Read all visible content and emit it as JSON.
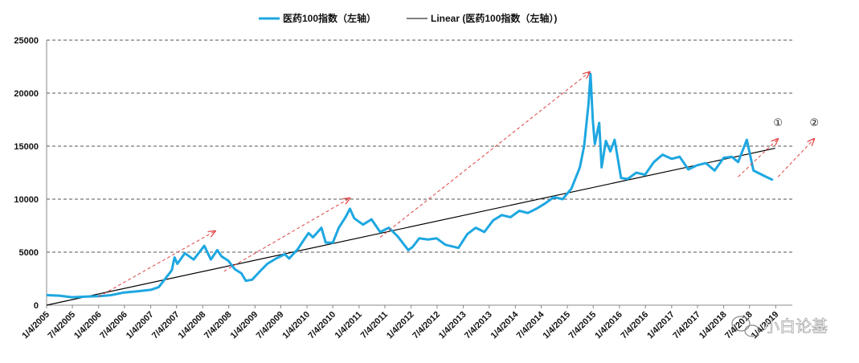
{
  "chart_data": {
    "type": "line",
    "legend": {
      "position": "top-center",
      "entries": [
        {
          "label": "医药100指数（左轴）",
          "color": "#1ea7e1"
        },
        {
          "label": "Linear (医药100指数（左轴）)",
          "color": "#000000"
        }
      ]
    },
    "y_axis": {
      "ylim": [
        0,
        25000
      ],
      "ticks": [
        "0",
        "5000",
        "10000",
        "15000",
        "20000",
        "25000"
      ],
      "gridlines": true
    },
    "x_axis": {
      "xlim": [
        "2005-01-04",
        "2019-04-30"
      ],
      "tick_labels": [
        "1/4/2005",
        "7/4/2005",
        "1/4/2006",
        "7/4/2006",
        "1/4/2007",
        "7/4/2007",
        "1/4/2008",
        "7/4/2008",
        "1/4/2009",
        "7/4/2009",
        "1/4/2010",
        "7/4/2010",
        "1/4/2011",
        "7/4/2011",
        "1/4/2012",
        "7/4/2012",
        "1/4/2013",
        "7/4/2013",
        "1/4/2014",
        "7/4/2014",
        "1/4/2015",
        "7/4/2015",
        "1/4/2016",
        "7/4/2016",
        "1/4/2017",
        "7/4/2017",
        "1/4/2018",
        "7/4/2018",
        "1/4/2019"
      ]
    },
    "series": [
      {
        "name": "医药100指数（左轴）",
        "color": "#1ea7e1",
        "points": [
          [
            "2005-01-04",
            950
          ],
          [
            "2005-04-01",
            900
          ],
          [
            "2005-07-01",
            750
          ],
          [
            "2005-10-01",
            800
          ],
          [
            "2006-01-04",
            850
          ],
          [
            "2006-04-01",
            950
          ],
          [
            "2006-07-01",
            1200
          ],
          [
            "2006-10-01",
            1300
          ],
          [
            "2007-01-04",
            1450
          ],
          [
            "2007-03-01",
            1700
          ],
          [
            "2007-05-15",
            3000
          ],
          [
            "2007-06-01",
            3300
          ],
          [
            "2007-06-20",
            4500
          ],
          [
            "2007-07-10",
            3900
          ],
          [
            "2007-09-01",
            4900
          ],
          [
            "2007-11-01",
            4300
          ],
          [
            "2008-01-15",
            5600
          ],
          [
            "2008-03-01",
            4300
          ],
          [
            "2008-04-15",
            5200
          ],
          [
            "2008-05-15",
            4600
          ],
          [
            "2008-07-01",
            4200
          ],
          [
            "2008-08-15",
            3400
          ],
          [
            "2008-10-01",
            3000
          ],
          [
            "2008-11-01",
            2300
          ],
          [
            "2008-12-15",
            2400
          ],
          [
            "2009-02-01",
            3100
          ],
          [
            "2009-04-01",
            3900
          ],
          [
            "2009-06-01",
            4400
          ],
          [
            "2009-08-01",
            4800
          ],
          [
            "2009-09-01",
            4400
          ],
          [
            "2009-11-01",
            5300
          ],
          [
            "2009-12-15",
            6200
          ],
          [
            "2010-01-15",
            6800
          ],
          [
            "2010-02-15",
            6400
          ],
          [
            "2010-04-15",
            7300
          ],
          [
            "2010-05-15",
            5900
          ],
          [
            "2010-07-04",
            5900
          ],
          [
            "2010-08-15",
            7300
          ],
          [
            "2010-10-01",
            8300
          ],
          [
            "2010-11-01",
            9100
          ],
          [
            "2010-12-01",
            8200
          ],
          [
            "2011-02-01",
            7600
          ],
          [
            "2011-04-01",
            8100
          ],
          [
            "2011-06-01",
            6900
          ],
          [
            "2011-08-01",
            7300
          ],
          [
            "2011-10-01",
            6500
          ],
          [
            "2011-12-15",
            5200
          ],
          [
            "2012-01-15",
            5500
          ],
          [
            "2012-03-01",
            6300
          ],
          [
            "2012-05-01",
            6200
          ],
          [
            "2012-07-01",
            6300
          ],
          [
            "2012-09-01",
            5700
          ],
          [
            "2012-12-01",
            5400
          ],
          [
            "2013-02-01",
            6700
          ],
          [
            "2013-04-01",
            7300
          ],
          [
            "2013-06-01",
            6900
          ],
          [
            "2013-08-01",
            8000
          ],
          [
            "2013-10-01",
            8500
          ],
          [
            "2013-12-01",
            8300
          ],
          [
            "2014-02-01",
            8900
          ],
          [
            "2014-04-01",
            8700
          ],
          [
            "2014-06-01",
            9100
          ],
          [
            "2014-08-01",
            9600
          ],
          [
            "2014-10-01",
            10200
          ],
          [
            "2014-12-01",
            10000
          ],
          [
            "2015-02-01",
            11000
          ],
          [
            "2015-04-01",
            13000
          ],
          [
            "2015-05-01",
            15000
          ],
          [
            "2015-06-01",
            19000
          ],
          [
            "2015-06-15",
            21800
          ],
          [
            "2015-07-01",
            17500
          ],
          [
            "2015-07-15",
            15200
          ],
          [
            "2015-08-15",
            17200
          ],
          [
            "2015-09-01",
            13000
          ],
          [
            "2015-10-01",
            15500
          ],
          [
            "2015-11-01",
            14500
          ],
          [
            "2015-12-01",
            15600
          ],
          [
            "2016-01-15",
            12000
          ],
          [
            "2016-03-01",
            11900
          ],
          [
            "2016-05-01",
            12500
          ],
          [
            "2016-07-01",
            12300
          ],
          [
            "2016-09-01",
            13500
          ],
          [
            "2016-11-01",
            14200
          ],
          [
            "2017-01-04",
            13800
          ],
          [
            "2017-03-01",
            14000
          ],
          [
            "2017-05-01",
            12800
          ],
          [
            "2017-07-01",
            13200
          ],
          [
            "2017-09-01",
            13400
          ],
          [
            "2017-11-01",
            12700
          ],
          [
            "2018-01-04",
            13900
          ],
          [
            "2018-03-01",
            14000
          ],
          [
            "2018-04-15",
            13500
          ],
          [
            "2018-06-15",
            15600
          ],
          [
            "2018-08-01",
            12700
          ],
          [
            "2018-10-15",
            12200
          ],
          [
            "2018-12-15",
            11800
          ]
        ]
      },
      {
        "name": "Linear (医药100指数（左轴）)",
        "color": "#000000",
        "points": [
          [
            "2005-01-04",
            0
          ],
          [
            "2018-12-31",
            14800
          ]
        ]
      }
    ],
    "annotations": {
      "arrow_color": "#e04040",
      "arrows": [
        {
          "from": [
            "2006-01-04",
            800
          ],
          "to": [
            "2008-04-01",
            7000
          ]
        },
        {
          "from": [
            "2008-06-01",
            3200
          ],
          "to": [
            "2010-11-01",
            10100
          ]
        },
        {
          "from": [
            "2011-06-01",
            6400
          ],
          "to": [
            "2015-06-10",
            22000
          ]
        },
        {
          "from": [
            "2018-04-15",
            12100
          ],
          "to": [
            "2019-01-20",
            15700
          ]
        },
        {
          "from": [
            "2019-01-20",
            12100
          ],
          "to": [
            "2019-10-01",
            15700
          ]
        }
      ],
      "labels": [
        {
          "text": "①",
          "x": "2019-01-20",
          "y": 16900
        },
        {
          "text": "②",
          "x": "2019-10-01",
          "y": 16900
        }
      ]
    },
    "watermark": "小白论基"
  }
}
